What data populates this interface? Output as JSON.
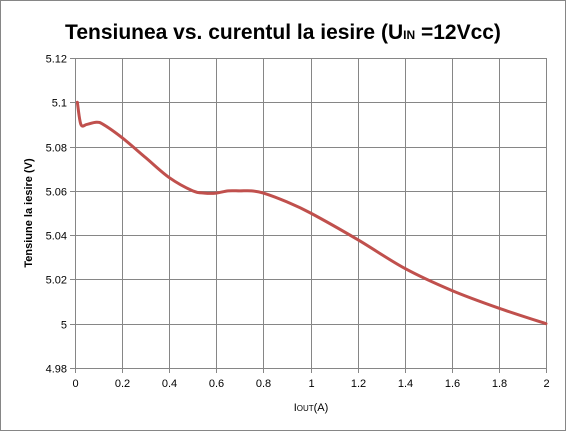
{
  "chart_data": {
    "type": "line",
    "title": {
      "main": "Tensiunea vs. curentul la iesire (U",
      "sub": "IN",
      "tail": " =12Vcc)"
    },
    "xlabel": {
      "main": "I",
      "sub": "OUT",
      "tail": "(A)"
    },
    "ylabel": "Tensiune la iesire (V)",
    "xlim": [
      0,
      2
    ],
    "ylim": [
      4.98,
      5.12
    ],
    "x_ticks": [
      0,
      0.2,
      0.4,
      0.6,
      0.8,
      1,
      1.2,
      1.4,
      1.6,
      1.8,
      2
    ],
    "x_tick_labels": [
      "0",
      "0.2",
      "0.4",
      "0.6",
      "0.8",
      "1",
      "1.2",
      "1.4",
      "1.6",
      "1.8",
      "2"
    ],
    "y_ticks": [
      4.98,
      5,
      5.02,
      5.04,
      5.06,
      5.08,
      5.1,
      5.12
    ],
    "y_tick_labels": [
      "4.98",
      "5",
      "5.02",
      "5.04",
      "5.06",
      "5.08",
      "5.1",
      "5.12"
    ],
    "grid": true,
    "series": [
      {
        "color": "#c0504d",
        "x": [
          0.01,
          0.025,
          0.05,
          0.09,
          0.12,
          0.2,
          0.3,
          0.4,
          0.5,
          0.55,
          0.6,
          0.65,
          0.7,
          0.75,
          0.8,
          0.9,
          1,
          1.2,
          1.4,
          1.6,
          1.8,
          2
        ],
        "y": [
          5.1,
          5.09,
          5.09,
          5.091,
          5.09,
          5.084,
          5.075,
          5.066,
          5.06,
          5.059,
          5.059,
          5.06,
          5.06,
          5.06,
          5.059,
          5.055,
          5.05,
          5.038,
          5.025,
          5.015,
          5.007,
          5.0
        ]
      }
    ]
  }
}
